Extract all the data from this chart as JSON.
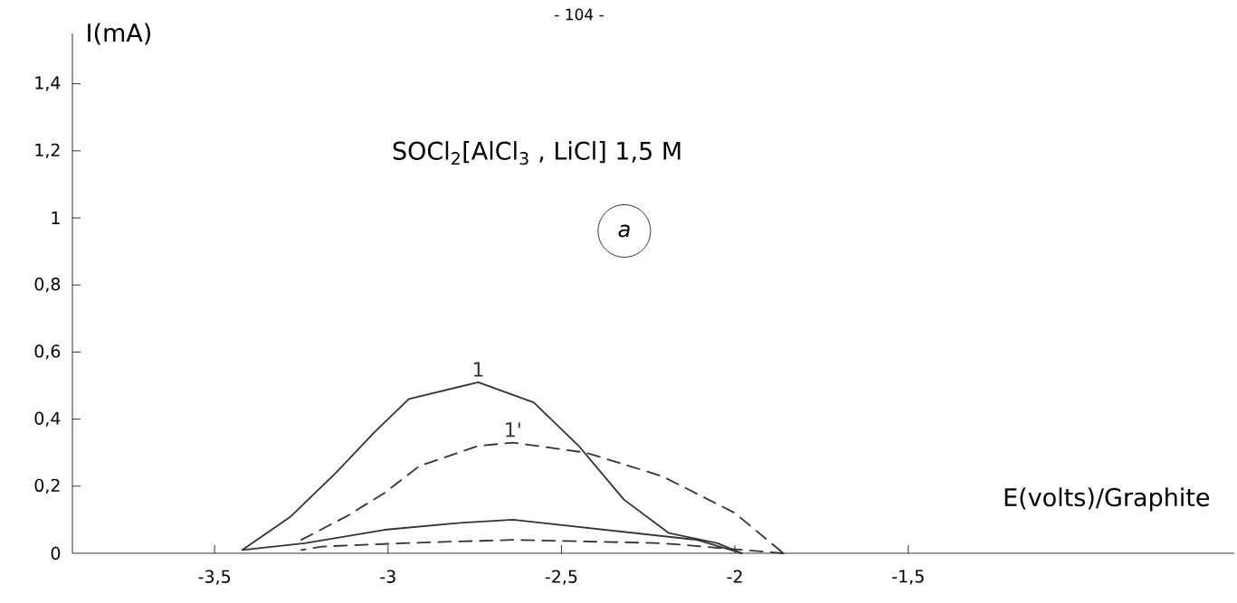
{
  "chart_data": {
    "type": "line",
    "title": "SOCl$_{2}$[AlCl$_{3}$ , LiCl] 1,5 M",
    "xlabel": "E(volts)/Graphite",
    "ylabel": "I(mA)",
    "annotations": [
      "- 104 -",
      "a"
    ],
    "xlim": [
      -3.91,
      -0.56
    ],
    "ylim": [
      0,
      1.55
    ],
    "xticks": [
      {
        "value": -3.5,
        "label": "-3,5"
      },
      -3,
      {
        "value": -2.5,
        "label": "-2,5"
      },
      -2,
      {
        "value": -1.5,
        "label": "-1,5"
      }
    ],
    "yticks": [
      0,
      {
        "value": 0.2,
        "label": "0,2"
      },
      {
        "value": 0.4,
        "label": "0,4"
      },
      {
        "value": 0.6,
        "label": "0,6"
      },
      {
        "value": 0.8,
        "label": "0,8"
      },
      1,
      {
        "value": 1.2,
        "label": "1,2"
      },
      {
        "value": 1.4,
        "label": "1,4"
      }
    ],
    "marker": "none",
    "series": [
      {
        "name": "1",
        "color": "#333333",
        "line_style": "solid",
        "x": [
          -3.42,
          -3.28,
          -3.15,
          -3.04,
          -2.94,
          -2.74,
          -2.58,
          -2.45,
          -2.32,
          -2.19,
          -2.05,
          -1.98
        ],
        "values": [
          0.01,
          0.11,
          0.24,
          0.36,
          0.46,
          0.51,
          0.45,
          0.32,
          0.16,
          0.06,
          0.03,
          0.0
        ]
      },
      {
        "color": "#333333",
        "line_style": "solid",
        "x": [
          -1.98,
          -2.11,
          -2.64,
          -2.8,
          -3.01,
          -3.24,
          -3.42
        ],
        "values": [
          0.0,
          0.04,
          0.1,
          0.09,
          0.07,
          0.03,
          0.01
        ]
      },
      {
        "name": "1'",
        "color": "#333333",
        "line_style": "dashed",
        "x": [
          -3.25,
          -3.12,
          -3.01,
          -2.91,
          -2.74,
          -2.64,
          -2.43,
          -2.21,
          -2.0,
          -1.86
        ],
        "values": [
          0.04,
          0.11,
          0.18,
          0.26,
          0.32,
          0.33,
          0.3,
          0.23,
          0.12,
          0.0
        ]
      },
      {
        "color": "#333333",
        "line_style": "dashed",
        "x": [
          -1.86,
          -2.21,
          -2.64,
          -2.96,
          -3.19,
          -3.25
        ],
        "values": [
          0.0,
          0.03,
          0.04,
          0.03,
          0.02,
          0.01
        ]
      }
    ]
  }
}
